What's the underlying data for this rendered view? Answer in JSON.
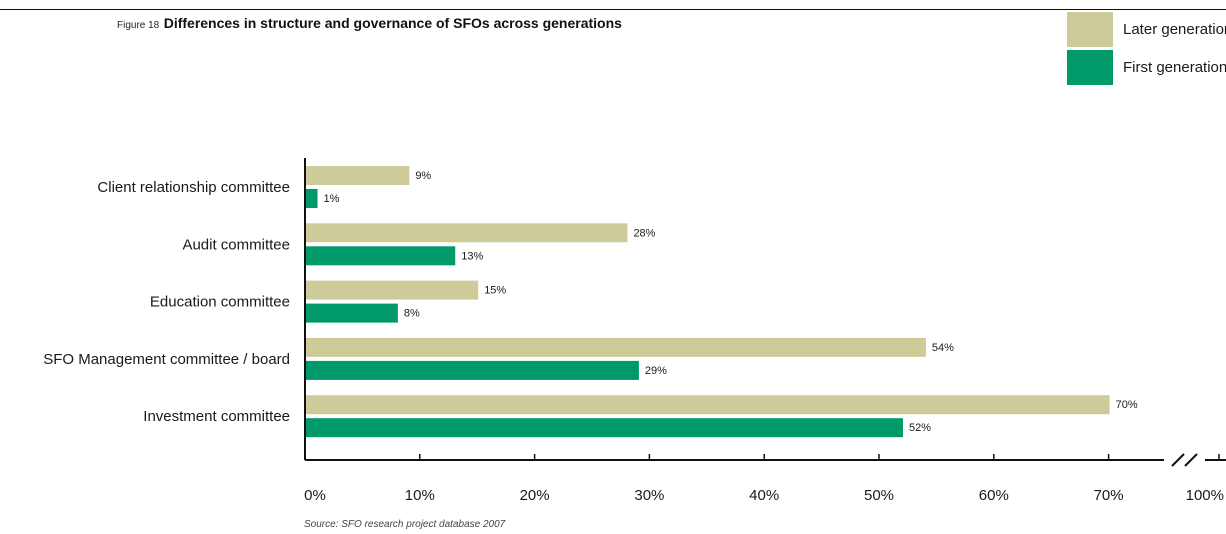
{
  "figure": {
    "number_label": "Figure 18",
    "title": "Differences in structure and governance of SFOs across generations",
    "source": "Source: SFO research project database 2007"
  },
  "colors": {
    "later": "#cdcb9a",
    "first": "#00996a",
    "axis": "#111111"
  },
  "chart_data": {
    "type": "bar",
    "orientation": "horizontal",
    "categories": [
      "Client relationship committee",
      "Audit committee",
      "Education committee",
      "SFO Management committee / board",
      "Investment committee"
    ],
    "series": [
      {
        "name": "Later generations",
        "values": [
          9,
          28,
          15,
          54,
          70
        ]
      },
      {
        "name": "First generation",
        "values": [
          1,
          13,
          8,
          29,
          52
        ]
      }
    ],
    "value_labels": [
      [
        "9%",
        "28%",
        "15%",
        "54%",
        "70%"
      ],
      [
        "1%",
        "13%",
        "8%",
        "29%",
        "52%"
      ]
    ],
    "x_ticks": [
      "0%",
      "10%",
      "20%",
      "30%",
      "40%",
      "50%",
      "60%",
      "70%",
      "100%"
    ],
    "xlim": [
      0,
      100
    ],
    "x_axis_break": "between 70% and 100%",
    "legend_position": "top-right",
    "grid": false
  }
}
